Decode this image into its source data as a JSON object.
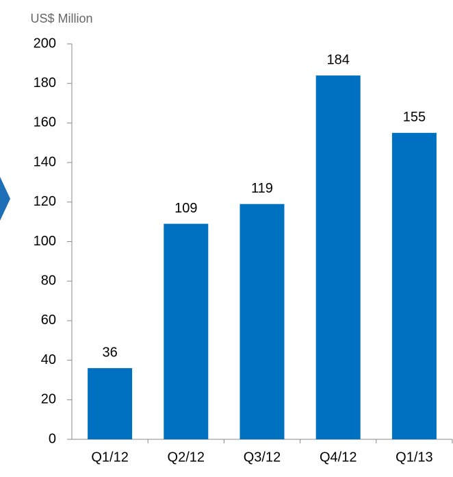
{
  "chart_data": {
    "type": "bar",
    "y_label": "US$ Million",
    "categories": [
      "Q1/12",
      "Q2/12",
      "Q3/12",
      "Q4/12",
      "Q1/13"
    ],
    "values": [
      36,
      109,
      119,
      184,
      155
    ],
    "color": "#0070c0",
    "ylim": [
      0,
      200
    ],
    "yticks": [
      0,
      20,
      40,
      60,
      80,
      100,
      120,
      140,
      160,
      180,
      200
    ]
  }
}
